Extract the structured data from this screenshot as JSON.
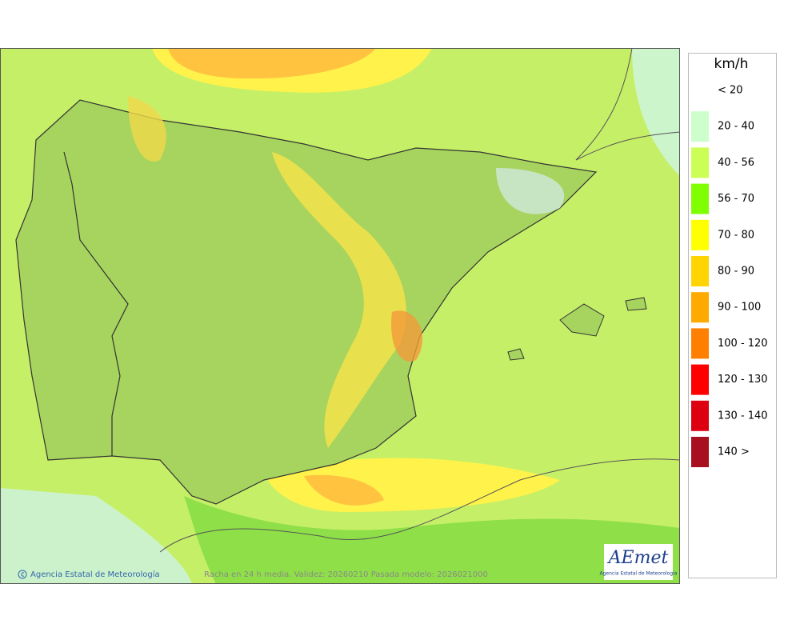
{
  "legend": {
    "unit": "km/h",
    "items": [
      {
        "label": "< 20",
        "color": "#ffffff"
      },
      {
        "label": "20 - 40",
        "color": "#ccffcc"
      },
      {
        "label": "40 - 56",
        "color": "#ccff55"
      },
      {
        "label": "56 - 70",
        "color": "#80ff00"
      },
      {
        "label": "70 - 80",
        "color": "#ffff00"
      },
      {
        "label": "80 - 90",
        "color": "#ffd400"
      },
      {
        "label": "90 - 100",
        "color": "#ffaa00"
      },
      {
        "label": "100 - 120",
        "color": "#ff8000"
      },
      {
        "label": "120 - 130",
        "color": "#ff0000"
      },
      {
        "label": "130 - 140",
        "color": "#dd0010"
      },
      {
        "label": "140 >",
        "color": "#a81020"
      }
    ]
  },
  "footer": {
    "credit": "Agencia Estatal de Meteorología",
    "caption": "Racha en 24 h media. Validez: 20260210 Pasada modelo: 2026021000"
  },
  "logo": {
    "name": "AEmet",
    "subtitle": "Agencia Estatal de Meteorología"
  }
}
